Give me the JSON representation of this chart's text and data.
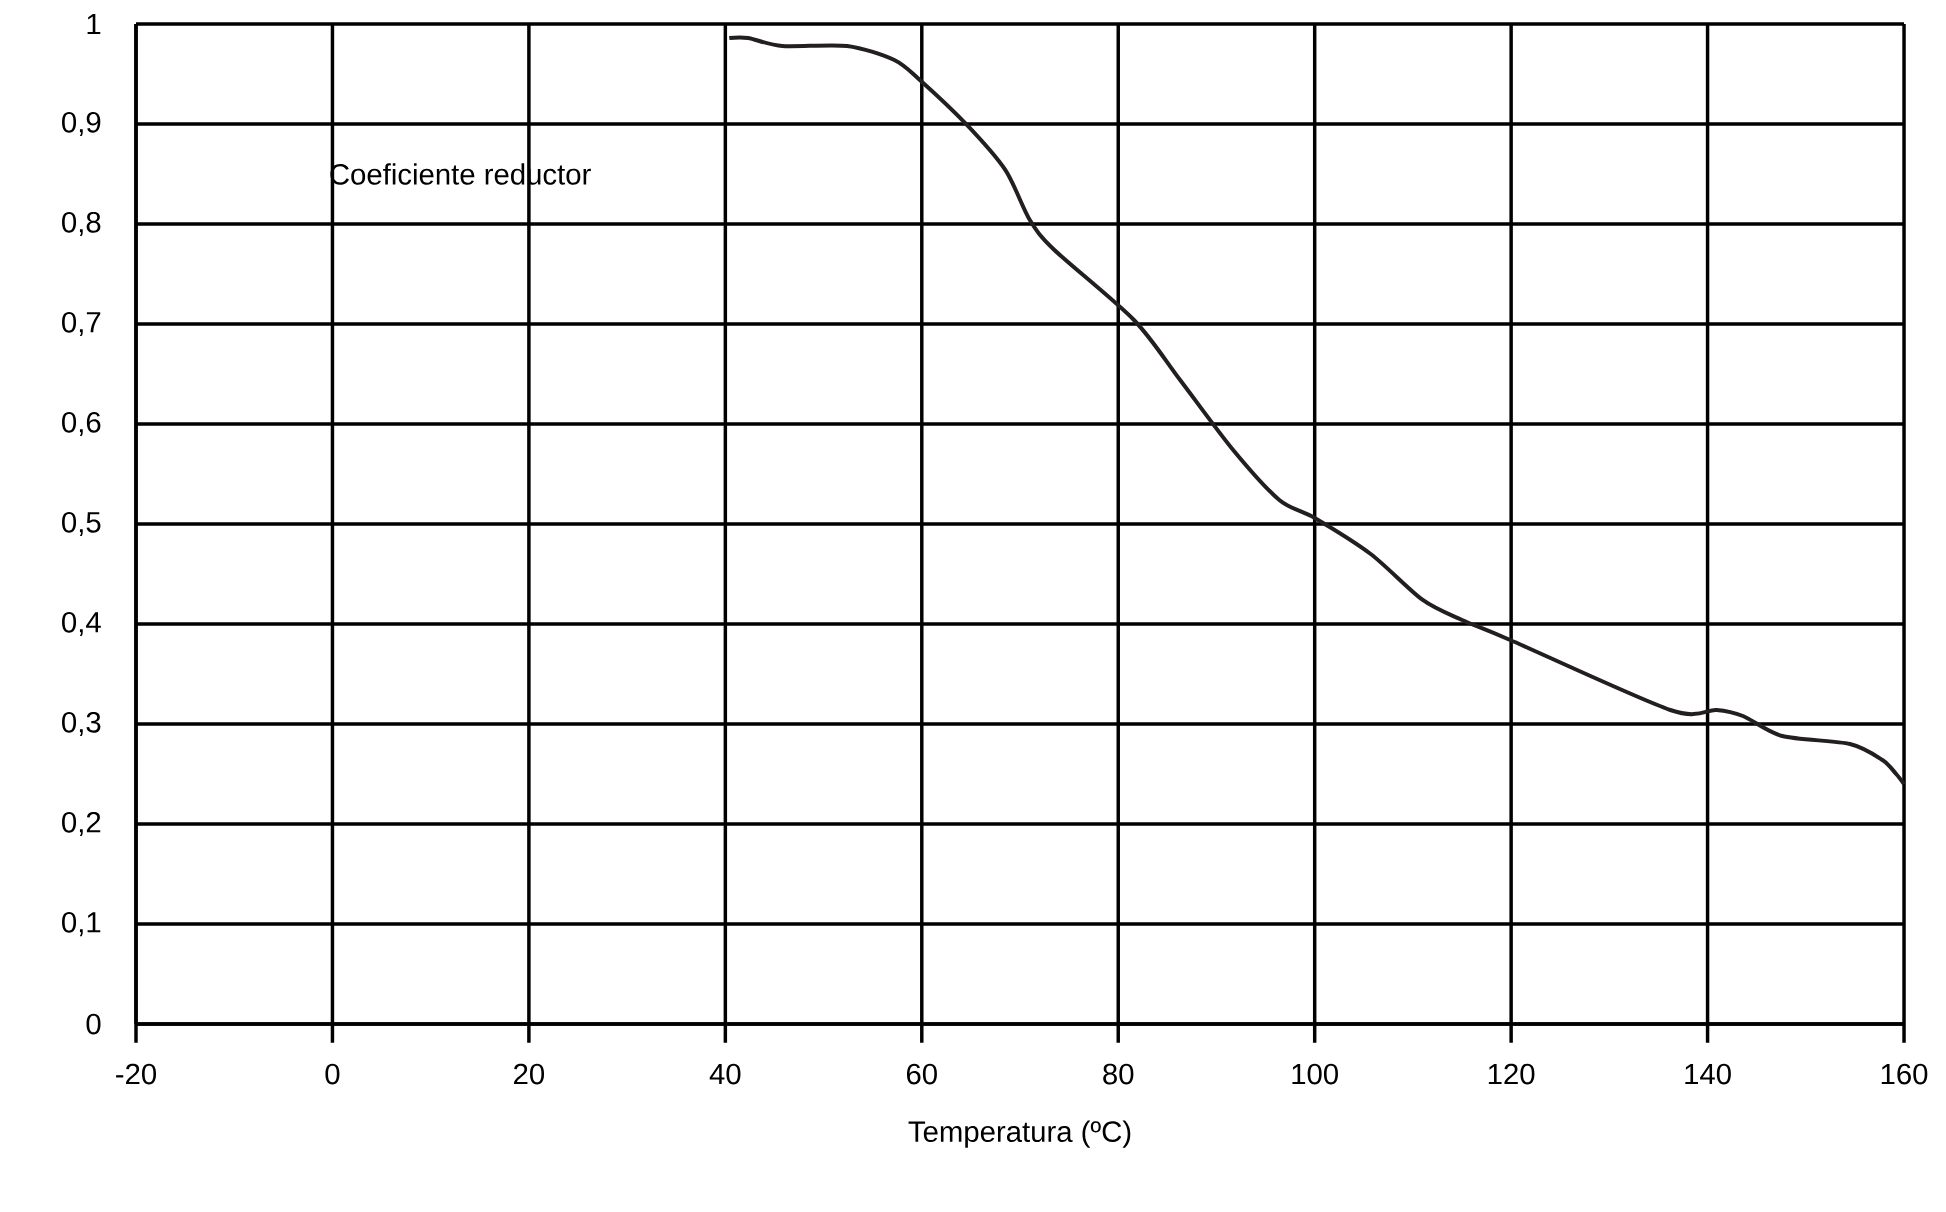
{
  "chart_data": {
    "type": "line",
    "xlabel": "Temperatura (ºC)",
    "ylabel": "Coeficiente reductor",
    "xlim": [
      -20,
      160
    ],
    "ylim": [
      0,
      1
    ],
    "xticks": [
      -20,
      0,
      20,
      40,
      60,
      80,
      100,
      120,
      140,
      160
    ],
    "yticks": [
      0,
      {
        "value": 0.1,
        "label": "0,1"
      },
      {
        "value": 0.2,
        "label": "0,2"
      },
      {
        "value": 0.3,
        "label": "0,3"
      },
      {
        "value": 0.4,
        "label": "0,4"
      },
      {
        "value": 0.5,
        "label": "0,5"
      },
      {
        "value": 0.6,
        "label": "0,6"
      },
      {
        "value": 0.7,
        "label": "0,7"
      },
      {
        "value": 0.8,
        "label": "0,8"
      },
      {
        "value": 0.9,
        "label": "0,9"
      },
      1
    ],
    "grid": true,
    "marker": "none",
    "line_style": "solid",
    "series": [
      {
        "color": "#231f20",
        "x": [
          40.4,
          42.3,
          45.8,
          52.4,
          57.2,
          59.8,
          64.5,
          68.5,
          71,
          73.5,
          81.6,
          86.3,
          91.7,
          96.4,
          100,
          105.7,
          111,
          115,
          119.9,
          136.2,
          140.9,
          143.6,
          147.6,
          154.5,
          157.8,
          159.2,
          160
        ],
        "values": [
          0.986,
          0.986,
          0.978,
          0.978,
          0.964,
          0.944,
          0.9,
          0.854,
          0.804,
          0.774,
          0.704,
          0.644,
          0.574,
          0.524,
          0.506,
          0.47,
          0.424,
          0.404,
          0.384,
          0.314,
          0.314,
          0.308,
          0.288,
          0.28,
          0.264,
          0.25,
          0.24
        ]
      }
    ]
  }
}
